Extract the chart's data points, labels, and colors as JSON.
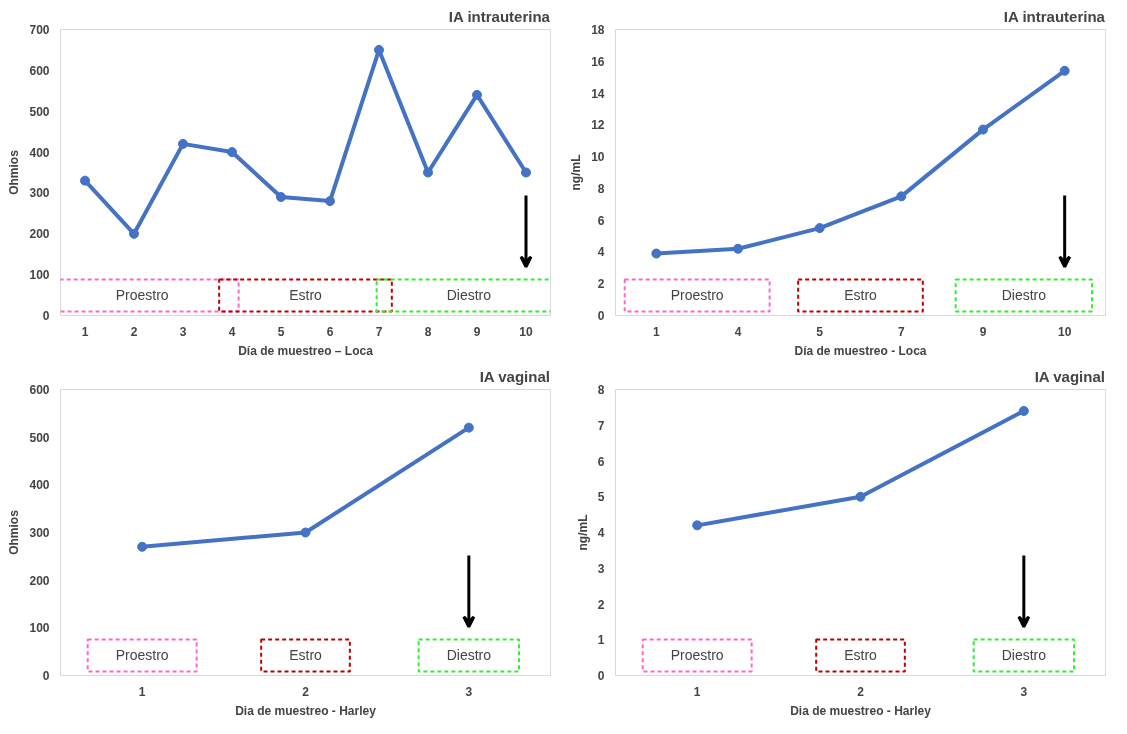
{
  "chart_data": [
    {
      "type": "line",
      "title": "IA intrauterina",
      "xlabel": "Día de muestreo – Loca",
      "ylabel": "Ohmios",
      "categories": [
        "1",
        "2",
        "3",
        "4",
        "5",
        "6",
        "7",
        "8",
        "9",
        "10"
      ],
      "series": [
        {
          "color": "#4472c4",
          "values": [
            330,
            200,
            420,
            400,
            290,
            280,
            650,
            350,
            540,
            350
          ]
        }
      ],
      "ylim": [
        0,
        700
      ],
      "yticks": [
        0,
        100,
        200,
        300,
        400,
        500,
        600,
        700
      ],
      "grid": false,
      "marker": "circle",
      "annotations": [
        "Proestro",
        "Estro",
        "Diestro"
      ]
    },
    {
      "type": "line",
      "title": "IA intrauterina",
      "xlabel": "Día de muestreo - Loca",
      "ylabel": "ng/mL",
      "categories": [
        "1",
        "4",
        "5",
        "7",
        "9",
        "10"
      ],
      "series": [
        {
          "color": "#4472c4",
          "values": [
            3.9,
            4.2,
            5.5,
            7.5,
            11.7,
            15.4
          ]
        }
      ],
      "ylim": [
        0,
        18
      ],
      "yticks": [
        0,
        2,
        4,
        6,
        8,
        10,
        12,
        14,
        16,
        18
      ],
      "grid": false,
      "marker": "circle",
      "annotations": [
        "Proestro",
        "Estro",
        "Diestro"
      ]
    },
    {
      "type": "line",
      "title": "IA vaginal",
      "xlabel": "Dia de muestreo - Harley",
      "ylabel": "Ohmios",
      "categories": [
        "1",
        "2",
        "3"
      ],
      "series": [
        {
          "color": "#4472c4",
          "values": [
            270,
            300,
            520
          ]
        }
      ],
      "ylim": [
        0,
        600
      ],
      "yticks": [
        0,
        100,
        200,
        300,
        400,
        500,
        600
      ],
      "grid": false,
      "marker": "circle",
      "annotations": [
        "Proestro",
        "Estro",
        "Diestro"
      ]
    },
    {
      "type": "line",
      "title": "IA vaginal",
      "xlabel": "Dia de muestreo - Harley",
      "ylabel": "ng/mL",
      "categories": [
        "1",
        "2",
        "3"
      ],
      "series": [
        {
          "color": "#4472c4",
          "values": [
            4.2,
            5.0,
            7.4
          ]
        }
      ],
      "ylim": [
        0,
        8
      ],
      "yticks": [
        0,
        1,
        2,
        3,
        4,
        5,
        6,
        7,
        8
      ],
      "grid": false,
      "marker": "circle",
      "annotations": [
        "Proestro",
        "Estro",
        "Diestro"
      ]
    }
  ]
}
